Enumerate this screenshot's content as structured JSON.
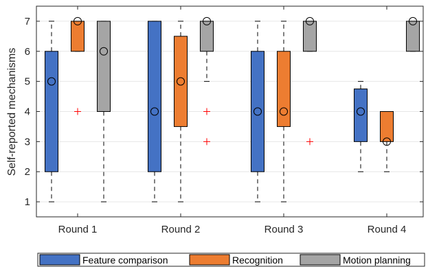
{
  "chart_data": {
    "type": "box",
    "ylabel": "Self-reported mechanisms",
    "xlabel": "",
    "ylim": [
      0.5,
      7.5
    ],
    "yticks": [
      1,
      2,
      3,
      4,
      5,
      6,
      7
    ],
    "grid": "horizontal",
    "legend_position": "bottom",
    "categories": [
      "Round 1",
      "Round 2",
      "Round 3",
      "Round 4"
    ],
    "series": [
      {
        "name": "Feature comparison",
        "color": "#4472C4",
        "boxes": [
          {
            "whisker_low": 1,
            "q1": 2,
            "median": 5,
            "q3": 6,
            "whisker_high": 7,
            "outliers": []
          },
          {
            "whisker_low": 1,
            "q1": 2,
            "median": 4,
            "q3": 7,
            "whisker_high": 7,
            "outliers": []
          },
          {
            "whisker_low": 1,
            "q1": 2,
            "median": 4,
            "q3": 6,
            "whisker_high": 7,
            "outliers": []
          },
          {
            "whisker_low": 2,
            "q1": 3,
            "median": 4,
            "q3": 4.75,
            "whisker_high": 5,
            "outliers": []
          }
        ]
      },
      {
        "name": "Recognition",
        "color": "#ED7D31",
        "boxes": [
          {
            "whisker_low": 6,
            "q1": 6,
            "median": 7,
            "q3": 7,
            "whisker_high": 7,
            "outliers": [
              4
            ]
          },
          {
            "whisker_low": 1,
            "q1": 3.5,
            "median": 5,
            "q3": 6.5,
            "whisker_high": 7,
            "outliers": []
          },
          {
            "whisker_low": 1,
            "q1": 3.5,
            "median": 4,
            "q3": 6,
            "whisker_high": 7,
            "outliers": []
          },
          {
            "whisker_low": 2,
            "q1": 3,
            "median": 3,
            "q3": 4,
            "whisker_high": 4,
            "outliers": []
          }
        ]
      },
      {
        "name": "Motion planning",
        "color": "#A5A5A5",
        "boxes": [
          {
            "whisker_low": 1,
            "q1": 4,
            "median": 6,
            "q3": 7,
            "whisker_high": 7,
            "outliers": []
          },
          {
            "whisker_low": 5,
            "q1": 6,
            "median": 7,
            "q3": 7,
            "whisker_high": 7,
            "outliers": [
              4,
              4,
              3
            ]
          },
          {
            "whisker_low": 6,
            "q1": 6,
            "median": 7,
            "q3": 7,
            "whisker_high": 7,
            "outliers": [
              3
            ]
          },
          {
            "whisker_low": 6,
            "q1": 6,
            "median": 7,
            "q3": 7,
            "whisker_high": 7,
            "outliers": []
          }
        ]
      }
    ]
  }
}
